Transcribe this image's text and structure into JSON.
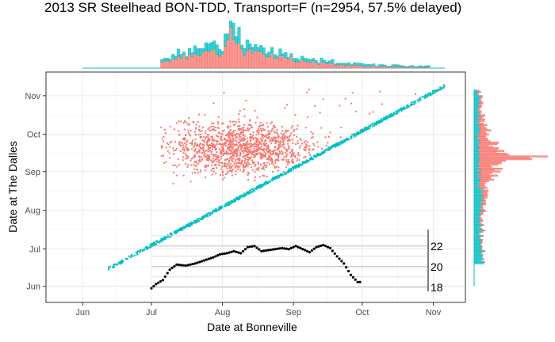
{
  "chart_data": {
    "type": "scatter",
    "title": "2013 SR Steelhead BON-TDD, Transport=F (n=2954, 57.5% delayed)",
    "xlabel": "Date at Bonneville",
    "ylabel": "Date at The Dalles",
    "x_ticks": [
      {
        "label": "Jun",
        "value": "2013-06-01"
      },
      {
        "label": "Jul",
        "value": "2013-07-01"
      },
      {
        "label": "Aug",
        "value": "2013-08-01"
      },
      {
        "label": "Sep",
        "value": "2013-09-01"
      },
      {
        "label": "Oct",
        "value": "2013-10-01"
      },
      {
        "label": "Nov",
        "value": "2013-11-01"
      }
    ],
    "y_ticks": [
      {
        "label": "Jun",
        "value": "2013-06-01"
      },
      {
        "label": "Jul",
        "value": "2013-07-01"
      },
      {
        "label": "Aug",
        "value": "2013-08-01"
      },
      {
        "label": "Sep",
        "value": "2013-09-01"
      },
      {
        "label": "Oct",
        "value": "2013-10-01"
      },
      {
        "label": "Nov",
        "value": "2013-11-01"
      }
    ],
    "xlim": [
      "2013-05-16",
      "2013-11-15"
    ],
    "ylim": [
      "2013-05-19",
      "2013-11-20"
    ],
    "grid": true,
    "legend": "none",
    "colors": {
      "delayed": "#F8766D",
      "direct": "#00BFC4",
      "temperature": "#000000",
      "panel_border": "#333333",
      "grid": "#EBEBEB",
      "temp_grid": "#BEBEBE"
    },
    "series": [
      {
        "kind": "direct",
        "description": "tight diagonal band along y = x",
        "range": [
          "2013-06-12",
          "2013-11-06"
        ]
      },
      {
        "kind": "delayed",
        "description": "diffuse cloud above diagonal, Jul-Oct passage at Bonneville, Aug-Nov at The Dalles",
        "density_center": [
          "2013-08-10",
          "2013-09-20"
        ]
      }
    ],
    "temperature_inset": {
      "ylabel_ticks": [
        18,
        20,
        22
      ],
      "ylim": [
        17.6,
        23.6
      ],
      "x_range": [
        "2013-07-01",
        "2013-09-30"
      ],
      "anchors": [
        [
          "2013-07-01",
          17.9
        ],
        [
          "2013-07-03",
          18.3
        ],
        [
          "2013-07-06",
          18.7
        ],
        [
          "2013-07-09",
          19.7
        ],
        [
          "2013-07-12",
          20.2
        ],
        [
          "2013-07-16",
          20.1
        ],
        [
          "2013-07-20",
          20.3
        ],
        [
          "2013-07-24",
          20.6
        ],
        [
          "2013-07-28",
          20.9
        ],
        [
          "2013-07-31",
          21.2
        ],
        [
          "2013-08-03",
          21.3
        ],
        [
          "2013-08-06",
          21.5
        ],
        [
          "2013-08-09",
          21.3
        ],
        [
          "2013-08-12",
          21.9
        ],
        [
          "2013-08-15",
          22.0
        ],
        [
          "2013-08-18",
          21.5
        ],
        [
          "2013-08-21",
          21.6
        ],
        [
          "2013-08-24",
          21.7
        ],
        [
          "2013-08-27",
          21.8
        ],
        [
          "2013-08-30",
          21.7
        ],
        [
          "2013-09-02",
          22.0
        ],
        [
          "2013-09-05",
          21.7
        ],
        [
          "2013-09-08",
          21.4
        ],
        [
          "2013-09-11",
          21.9
        ],
        [
          "2013-09-14",
          22.1
        ],
        [
          "2013-09-17",
          21.8
        ],
        [
          "2013-09-20",
          21.0
        ],
        [
          "2013-09-23",
          20.3
        ],
        [
          "2013-09-26",
          19.2
        ],
        [
          "2013-09-29",
          18.5
        ]
      ]
    },
    "marginal_x": {
      "peak": "2013-08-05",
      "range": [
        "2013-06-01",
        "2013-11-06"
      ]
    },
    "marginal_y": {
      "peak": "2013-09-13",
      "range": [
        "2013-06-01",
        "2013-11-06"
      ]
    }
  }
}
